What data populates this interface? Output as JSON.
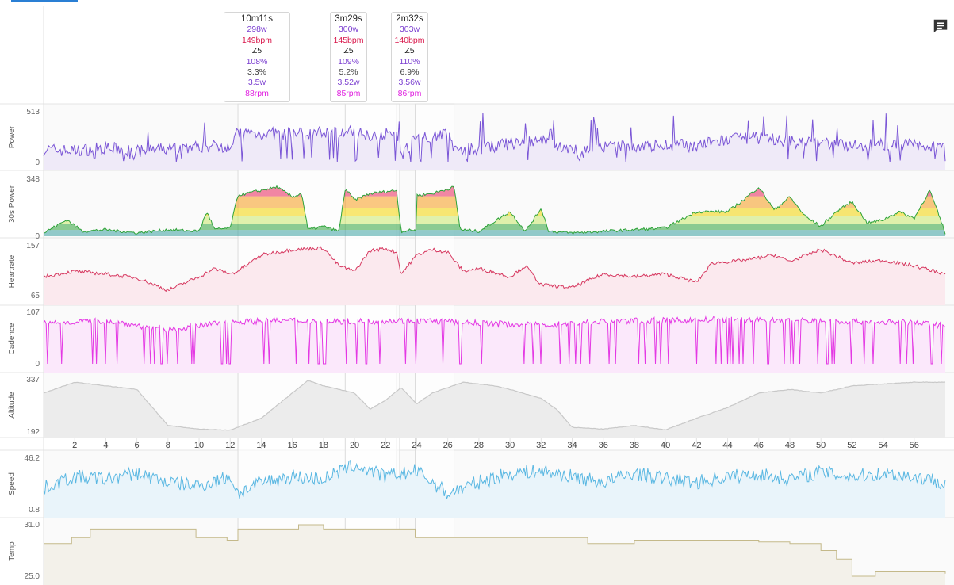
{
  "icons": {
    "comment": "comment-icon"
  },
  "colors": {
    "power": "#7a55d6",
    "hr": "#d6365e",
    "cadence": "#e437e4",
    "altitude": "#c8c8c8",
    "speed": "#59b7e2",
    "temp": "#c4b98a",
    "z1": "#3aa0a0",
    "z2": "#2ea33a",
    "z3": "#f2d300",
    "z4": "#f59a1a",
    "z5": "#e8245a"
  },
  "selections": [
    {
      "time": "10m11s",
      "watts": "298w",
      "bpm": "149bpm",
      "zone": "Z5",
      "pct": "108%",
      "variability": "3.3%",
      "wkg": "3.5w",
      "rpm": "88rpm",
      "start_min": 12.5,
      "end_min": 22.7
    },
    {
      "time": "3m29s",
      "watts": "300w",
      "bpm": "145bpm",
      "zone": "Z5",
      "pct": "109%",
      "variability": "5.2%",
      "wkg": "3.52w",
      "rpm": "85rpm",
      "start_min": 19.4,
      "end_min": 22.9
    },
    {
      "time": "2m32s",
      "watts": "303w",
      "bpm": "140bpm",
      "zone": "Z5",
      "pct": "110%",
      "variability": "6.9%",
      "wkg": "3.56w",
      "rpm": "86rpm",
      "start_min": 23.9,
      "end_min": 26.4
    }
  ],
  "chart_data": {
    "type": "line",
    "x_axis": {
      "unit": "min",
      "range": [
        0,
        58
      ],
      "ticks": [
        2,
        4,
        6,
        8,
        10,
        12,
        14,
        16,
        18,
        20,
        22,
        24,
        26,
        28,
        30,
        32,
        34,
        36,
        38,
        40,
        42,
        44,
        46,
        48,
        50,
        52,
        54,
        56
      ]
    },
    "series": [
      {
        "key": "power",
        "name": "Power",
        "ylim": [
          0,
          513
        ],
        "ymin_label": "0",
        "ymax_label": "513",
        "anchors": [
          [
            0,
            130
          ],
          [
            2,
            120
          ],
          [
            4,
            150
          ],
          [
            6,
            110
          ],
          [
            8,
            140
          ],
          [
            10,
            160
          ],
          [
            12,
            170
          ],
          [
            12.5,
            300
          ],
          [
            16,
            290
          ],
          [
            16.6,
            300
          ],
          [
            20,
            310
          ],
          [
            21,
            280
          ],
          [
            22.7,
            290
          ],
          [
            23,
            80
          ],
          [
            24,
            250
          ],
          [
            26,
            290
          ],
          [
            26.5,
            120
          ],
          [
            28,
            140
          ],
          [
            30,
            190
          ],
          [
            32,
            210
          ],
          [
            34,
            130
          ],
          [
            36,
            150
          ],
          [
            38,
            160
          ],
          [
            40,
            180
          ],
          [
            42,
            170
          ],
          [
            44,
            230
          ],
          [
            46,
            250
          ],
          [
            48,
            210
          ],
          [
            50,
            200
          ],
          [
            52,
            170
          ],
          [
            54,
            180
          ],
          [
            56,
            180
          ],
          [
            58,
            160
          ]
        ]
      },
      {
        "key": "p30",
        "name": "30s Power",
        "ylim": [
          0,
          348
        ],
        "ymin_label": "0",
        "ymax_label": "348",
        "anchors": [
          [
            0,
            20
          ],
          [
            1.5,
            100
          ],
          [
            2.5,
            30
          ],
          [
            4,
            40
          ],
          [
            6,
            20
          ],
          [
            8,
            40
          ],
          [
            10,
            30
          ],
          [
            10.5,
            150
          ],
          [
            11,
            40
          ],
          [
            12,
            50
          ],
          [
            12.5,
            250
          ],
          [
            15,
            300
          ],
          [
            16,
            240
          ],
          [
            16.6,
            260
          ],
          [
            17,
            40
          ],
          [
            18,
            60
          ],
          [
            19,
            30
          ],
          [
            19.4,
            290
          ],
          [
            20,
            220
          ],
          [
            21,
            260
          ],
          [
            22.7,
            280
          ],
          [
            23,
            30
          ],
          [
            24,
            40
          ],
          [
            24,
            250
          ],
          [
            25,
            260
          ],
          [
            26.4,
            300
          ],
          [
            26.8,
            40
          ],
          [
            28,
            30
          ],
          [
            30,
            150
          ],
          [
            31,
            30
          ],
          [
            32,
            170
          ],
          [
            32.5,
            30
          ],
          [
            34,
            20
          ],
          [
            36,
            30
          ],
          [
            38,
            40
          ],
          [
            40,
            50
          ],
          [
            42,
            150
          ],
          [
            44,
            150
          ],
          [
            45,
            220
          ],
          [
            46,
            300
          ],
          [
            47,
            160
          ],
          [
            48,
            240
          ],
          [
            49,
            120
          ],
          [
            50,
            60
          ],
          [
            51,
            150
          ],
          [
            52,
            210
          ],
          [
            53,
            80
          ],
          [
            54,
            100
          ],
          [
            55,
            150
          ],
          [
            56,
            110
          ],
          [
            57,
            280
          ],
          [
            58,
            20
          ]
        ]
      },
      {
        "key": "hr",
        "name": "Heartrate",
        "ylim": [
          65,
          157
        ],
        "ymin_label": "65",
        "ymax_label": "157",
        "anchors": [
          [
            0,
            100
          ],
          [
            2,
            110
          ],
          [
            4,
            105
          ],
          [
            6,
            98
          ],
          [
            8,
            75
          ],
          [
            10,
            100
          ],
          [
            11,
            115
          ],
          [
            12,
            105
          ],
          [
            12.5,
            110
          ],
          [
            14,
            140
          ],
          [
            16,
            150
          ],
          [
            18,
            153
          ],
          [
            19,
            120
          ],
          [
            20,
            110
          ],
          [
            21,
            148
          ],
          [
            22,
            152
          ],
          [
            22.7,
            145
          ],
          [
            23,
            105
          ],
          [
            24,
            140
          ],
          [
            25,
            150
          ],
          [
            26,
            145
          ],
          [
            27,
            110
          ],
          [
            28,
            115
          ],
          [
            30,
            100
          ],
          [
            31,
            120
          ],
          [
            32,
            85
          ],
          [
            34,
            80
          ],
          [
            36,
            105
          ],
          [
            38,
            100
          ],
          [
            40,
            105
          ],
          [
            42,
            90
          ],
          [
            43,
            125
          ],
          [
            45,
            130
          ],
          [
            47,
            140
          ],
          [
            48,
            128
          ],
          [
            50,
            150
          ],
          [
            52,
            125
          ],
          [
            54,
            130
          ],
          [
            56,
            120
          ],
          [
            58,
            105
          ]
        ]
      },
      {
        "key": "cadence",
        "name": "Cadence",
        "ylim": [
          0,
          107
        ],
        "ymin_label": "0",
        "ymax_label": "107",
        "anchors": [
          [
            0,
            85
          ],
          [
            4,
            90
          ],
          [
            8,
            70
          ],
          [
            12,
            88
          ],
          [
            16,
            90
          ],
          [
            20,
            88
          ],
          [
            24,
            90
          ],
          [
            28,
            85
          ],
          [
            32,
            80
          ],
          [
            36,
            88
          ],
          [
            40,
            90
          ],
          [
            44,
            92
          ],
          [
            48,
            90
          ],
          [
            52,
            88
          ],
          [
            56,
            85
          ],
          [
            58,
            80
          ]
        ]
      },
      {
        "key": "altitude",
        "name": "Altitude",
        "ylim": [
          192,
          337
        ],
        "ymin_label": "192",
        "ymax_label": "337",
        "anchors": [
          [
            0,
            300
          ],
          [
            2,
            330
          ],
          [
            4,
            320
          ],
          [
            6,
            310
          ],
          [
            7,
            260
          ],
          [
            8,
            210
          ],
          [
            10,
            200
          ],
          [
            12,
            197
          ],
          [
            14,
            230
          ],
          [
            16,
            300
          ],
          [
            17,
            335
          ],
          [
            18,
            320
          ],
          [
            20,
            300
          ],
          [
            21,
            255
          ],
          [
            22,
            280
          ],
          [
            23,
            315
          ],
          [
            24,
            270
          ],
          [
            25,
            300
          ],
          [
            27,
            330
          ],
          [
            29,
            320
          ],
          [
            30,
            310
          ],
          [
            32,
            285
          ],
          [
            33,
            255
          ],
          [
            34,
            205
          ],
          [
            36,
            200
          ],
          [
            38,
            210
          ],
          [
            40,
            198
          ],
          [
            42,
            230
          ],
          [
            44,
            260
          ],
          [
            46,
            300
          ],
          [
            48,
            310
          ],
          [
            50,
            300
          ],
          [
            52,
            320
          ],
          [
            54,
            325
          ],
          [
            56,
            330
          ],
          [
            58,
            330
          ]
        ]
      },
      {
        "key": "speed",
        "name": "Speed",
        "ylim": [
          0.8,
          46.2
        ],
        "ymin_label": "0.8",
        "ymax_label": "46.2",
        "anchors": [
          [
            0,
            20
          ],
          [
            2,
            30
          ],
          [
            4,
            28
          ],
          [
            6,
            33
          ],
          [
            8,
            25
          ],
          [
            10,
            22
          ],
          [
            12,
            30
          ],
          [
            12.5,
            15
          ],
          [
            14,
            25
          ],
          [
            16,
            30
          ],
          [
            18,
            28
          ],
          [
            20,
            40
          ],
          [
            22,
            30
          ],
          [
            24,
            35
          ],
          [
            26,
            15
          ],
          [
            28,
            25
          ],
          [
            30,
            33
          ],
          [
            32,
            35
          ],
          [
            34,
            30
          ],
          [
            36,
            25
          ],
          [
            38,
            33
          ],
          [
            40,
            28
          ],
          [
            42,
            25
          ],
          [
            44,
            30
          ],
          [
            46,
            32
          ],
          [
            48,
            28
          ],
          [
            50,
            34
          ],
          [
            52,
            30
          ],
          [
            54,
            33
          ],
          [
            56,
            30
          ],
          [
            58,
            25
          ]
        ]
      },
      {
        "key": "temp",
        "name": "Temp",
        "ylim": [
          25.0,
          31.0
        ],
        "ymin_label": "25.0",
        "ymax_label": "31.0",
        "steps": [
          [
            0,
            28.8
          ],
          [
            1.8,
            29.5
          ],
          [
            3,
            30.5
          ],
          [
            9.8,
            29.5
          ],
          [
            11.8,
            29.2
          ],
          [
            12.5,
            30.5
          ],
          [
            16.4,
            31.0
          ],
          [
            18,
            30.5
          ],
          [
            23.9,
            29.5
          ],
          [
            34,
            29.5
          ],
          [
            35,
            28.8
          ],
          [
            38,
            29.2
          ],
          [
            46,
            29.0
          ],
          [
            48,
            28.8
          ],
          [
            50,
            28.0
          ],
          [
            51,
            27.0
          ],
          [
            52,
            25.0
          ],
          [
            53.5,
            25.6
          ],
          [
            56,
            25.6
          ],
          [
            58,
            25.3
          ]
        ]
      }
    ]
  }
}
